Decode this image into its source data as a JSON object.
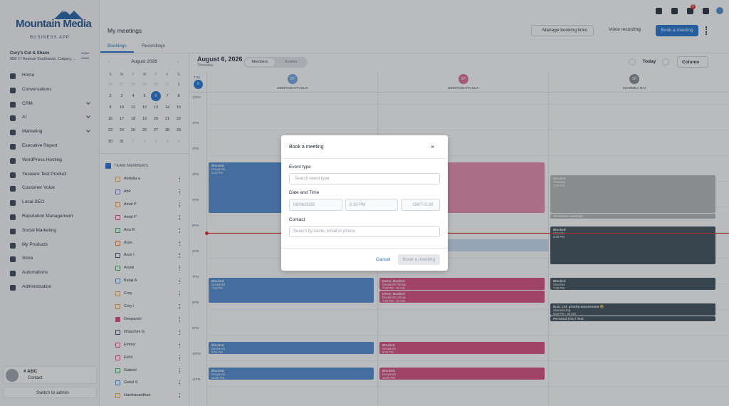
{
  "sidebar": {
    "brand": "Mountain Media",
    "tagline": "BUSINESS APP",
    "location_name": "Cory's Cut & Shave",
    "location_address": "908 17 Avenue Southwest, Calgary, ...",
    "nav": [
      {
        "label": "Home",
        "expandable": false
      },
      {
        "label": "Conversations",
        "expandable": false
      },
      {
        "label": "CRM",
        "expandable": true
      },
      {
        "label": "AI",
        "expandable": true
      },
      {
        "label": "Marketing",
        "expandable": true
      },
      {
        "label": "Executive Report",
        "expandable": false
      },
      {
        "label": "WordPress Hosting",
        "expandable": false
      },
      {
        "label": "Yesware Test Product",
        "expandable": false
      },
      {
        "label": "Customer Voice",
        "expandable": false
      },
      {
        "label": "Local SEO",
        "expandable": false
      },
      {
        "label": "Reputation Management",
        "expandable": false
      },
      {
        "label": "Social Marketing",
        "expandable": false
      },
      {
        "label": "My Products",
        "expandable": false
      },
      {
        "label": "Store",
        "expandable": false
      },
      {
        "label": "Automations",
        "expandable": false
      },
      {
        "label": "Administration",
        "expandable": false
      }
    ],
    "user": {
      "name": "# ABC",
      "role": "Contact"
    },
    "switch": "Switch to admin"
  },
  "header": {
    "title": "My meetings",
    "manage_links": "Manage booking links",
    "voice": "Voice recording",
    "book": "Book a meeting",
    "notification_count": "0"
  },
  "tabs": [
    "Bookings",
    "Recordings"
  ],
  "mini_calendar": {
    "month": "August 2026",
    "weekdays": [
      "S",
      "M",
      "T",
      "W",
      "T",
      "F",
      "S"
    ],
    "weeks": [
      [
        "26",
        "27",
        "28",
        "29",
        "30",
        "31",
        "1"
      ],
      [
        "2",
        "3",
        "4",
        "5",
        "6",
        "7",
        "8"
      ],
      [
        "9",
        "10",
        "11",
        "12",
        "13",
        "14",
        "15"
      ],
      [
        "16",
        "17",
        "18",
        "19",
        "20",
        "21",
        "22"
      ],
      [
        "23",
        "24",
        "25",
        "26",
        "27",
        "28",
        "29"
      ],
      [
        "30",
        "31",
        "1",
        "2",
        "3",
        "4",
        "5"
      ]
    ]
  },
  "team": {
    "label": "TEAM MEMBERS",
    "members": [
      {
        "name": "Abdulla a",
        "color": "#e0a15a",
        "checked": false
      },
      {
        "name": "Abir",
        "color": "#7c6fd6",
        "checked": false
      },
      {
        "name": "Amal P",
        "color": "#e0a15a",
        "checked": false
      },
      {
        "name": "Amal P",
        "color": "#d9497a",
        "checked": false
      },
      {
        "name": "Anu R",
        "color": "#3fa66b",
        "checked": false
      },
      {
        "name": "Arun .",
        "color": "#e07a3a",
        "checked": false
      },
      {
        "name": "Arun I",
        "color": "#374151",
        "checked": false
      },
      {
        "name": "Arunk",
        "color": "#3fa66b",
        "checked": false
      },
      {
        "name": "Balaji A",
        "color": "#4a89d0",
        "checked": false
      },
      {
        "name": "Cory",
        "color": "#e0a15a",
        "checked": false
      },
      {
        "name": "Cory i",
        "color": "#e0a15a",
        "checked": false
      },
      {
        "name": "Deepansh",
        "color": "#d9497a",
        "checked": true
      },
      {
        "name": "Dharshini G",
        "color": "#374151",
        "checked": false
      },
      {
        "name": "Emma",
        "color": "#d9497a",
        "checked": false
      },
      {
        "name": "Ezhil",
        "color": "#d9497a",
        "checked": false
      },
      {
        "name": "Gabriel",
        "color": "#3fa66b",
        "checked": false
      },
      {
        "name": "Gokul S",
        "color": "#4a89d0",
        "checked": false
      },
      {
        "name": "Harshavardhan",
        "color": "#e0a15a",
        "checked": false
      }
    ]
  },
  "calendar": {
    "date": "August 6, 2026",
    "weekday": "Thursday",
    "toggle": [
      "Members",
      "Events"
    ],
    "today": "Today",
    "view": "Column",
    "day_label": "THU",
    "day_num": "6",
    "hours": [
      "12PM",
      "1PM",
      "2PM",
      "3PM",
      "4PM",
      "5PM",
      "6PM",
      "7PM",
      "8PM",
      "9PM",
      "10PM",
      "11PM"
    ],
    "columns": [
      {
        "initials": "DP",
        "name": "DEEPANSH PAHUJA",
        "color": "#6fa4e0",
        "events": [
          {
            "title": "Blocked",
            "person": "Deepansh",
            "time": "3:30 PM",
            "color": "#4a89d0"
          },
          {
            "title": "Blocked",
            "person": "Deepansh",
            "time": "7:00 PM",
            "color": "#4a89d0"
          },
          {
            "title": "Blocked",
            "person": "Deepansh",
            "time": "9:00 PM",
            "color": "#4a89d0"
          },
          {
            "title": "Blocked",
            "person": "Deepansh",
            "time": "10:00 PM",
            "color": "#4a89d0"
          }
        ]
      },
      {
        "initials": "DP",
        "name": "DEEPANSH PAHUJA",
        "color": "#e36a8f",
        "events": [
          {
            "color": "#e88aa8"
          },
          {
            "color": "#c9dcf2"
          },
          {
            "title": "Demo_Booked",
            "person": "Deepansh Pahuja",
            "time": "7:00 PM - 30 min",
            "color": "#d9497a"
          },
          {
            "title": "Demo_Booked",
            "person": "Deepansh pahuja",
            "time": "7:30 PM - 30 min",
            "color": "#d9497a"
          },
          {
            "title": "Blocked",
            "person": "Deepansh",
            "time": "9:00 PM",
            "color": "#d9497a"
          },
          {
            "title": "Blocked",
            "person": "Deepansh",
            "time": "10:00 PM",
            "color": "#d9497a"
          }
        ]
      },
      {
        "initials": "SR",
        "name": "SHARMILA RAJ",
        "color": "#7f8a8f",
        "events": [
          {
            "title": "Blocked",
            "person": "Sharmila",
            "time": "3:00 PM",
            "color": "#b5b5b5"
          },
          {
            "title": "15 minute meetings",
            "color": "#b5b5b5"
          },
          {
            "title": "Blocked",
            "person": "Sharmila",
            "time": "5:00 PM",
            "color": "#3a4a57"
          },
          {
            "title": "Blocked",
            "person": "Sharmila",
            "time": "7:00 PM",
            "color": "#3a4a57"
          },
          {
            "title": "Buzz Cut_priority-assessment 😀",
            "person": "Sharmila Raj",
            "time": "8:00 PM - 30 min",
            "color": "#3a4a57"
          },
          {
            "title": "Personal Trim / Test",
            "color": "#3a4a57"
          }
        ]
      }
    ]
  },
  "modal": {
    "title": "Book a meeting",
    "event_type_label": "Event type",
    "event_type_placeholder": "Search event type",
    "datetime_label": "Date and Time",
    "date": "08/06/2026",
    "time": "5:30 PM",
    "timezone": "GMT+5:30",
    "contact_label": "Contact",
    "contact_placeholder": "Search by name, email or phone",
    "cancel": "Cancel",
    "submit": "Book a meeting"
  }
}
